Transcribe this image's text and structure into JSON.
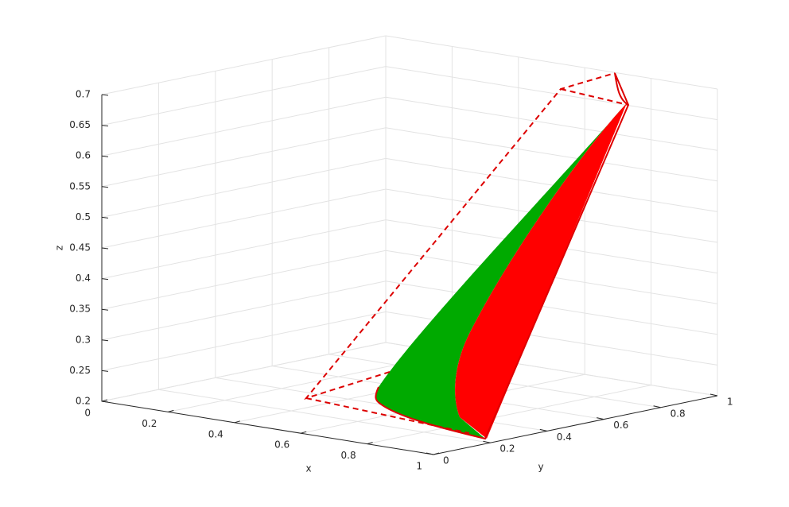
{
  "chart_data": {
    "type": "surface3d",
    "xlabel": "x",
    "ylabel": "y",
    "zlabel": "z",
    "xlim": [
      0,
      1
    ],
    "ylim": [
      0,
      1
    ],
    "zlim": [
      0.2,
      0.7
    ],
    "xticks": [
      0,
      0.2,
      0.4,
      0.6,
      0.8,
      1
    ],
    "yticks": [
      0,
      0.2,
      0.4,
      0.6,
      0.8,
      1
    ],
    "zticks": [
      0.2,
      0.25,
      0.3,
      0.35,
      0.4,
      0.45,
      0.5,
      0.55,
      0.6,
      0.65,
      0.7
    ],
    "surface_colors": [
      "#00aa00",
      "#ff0000"
    ],
    "outline_color": "#dd0000",
    "grid": true
  }
}
